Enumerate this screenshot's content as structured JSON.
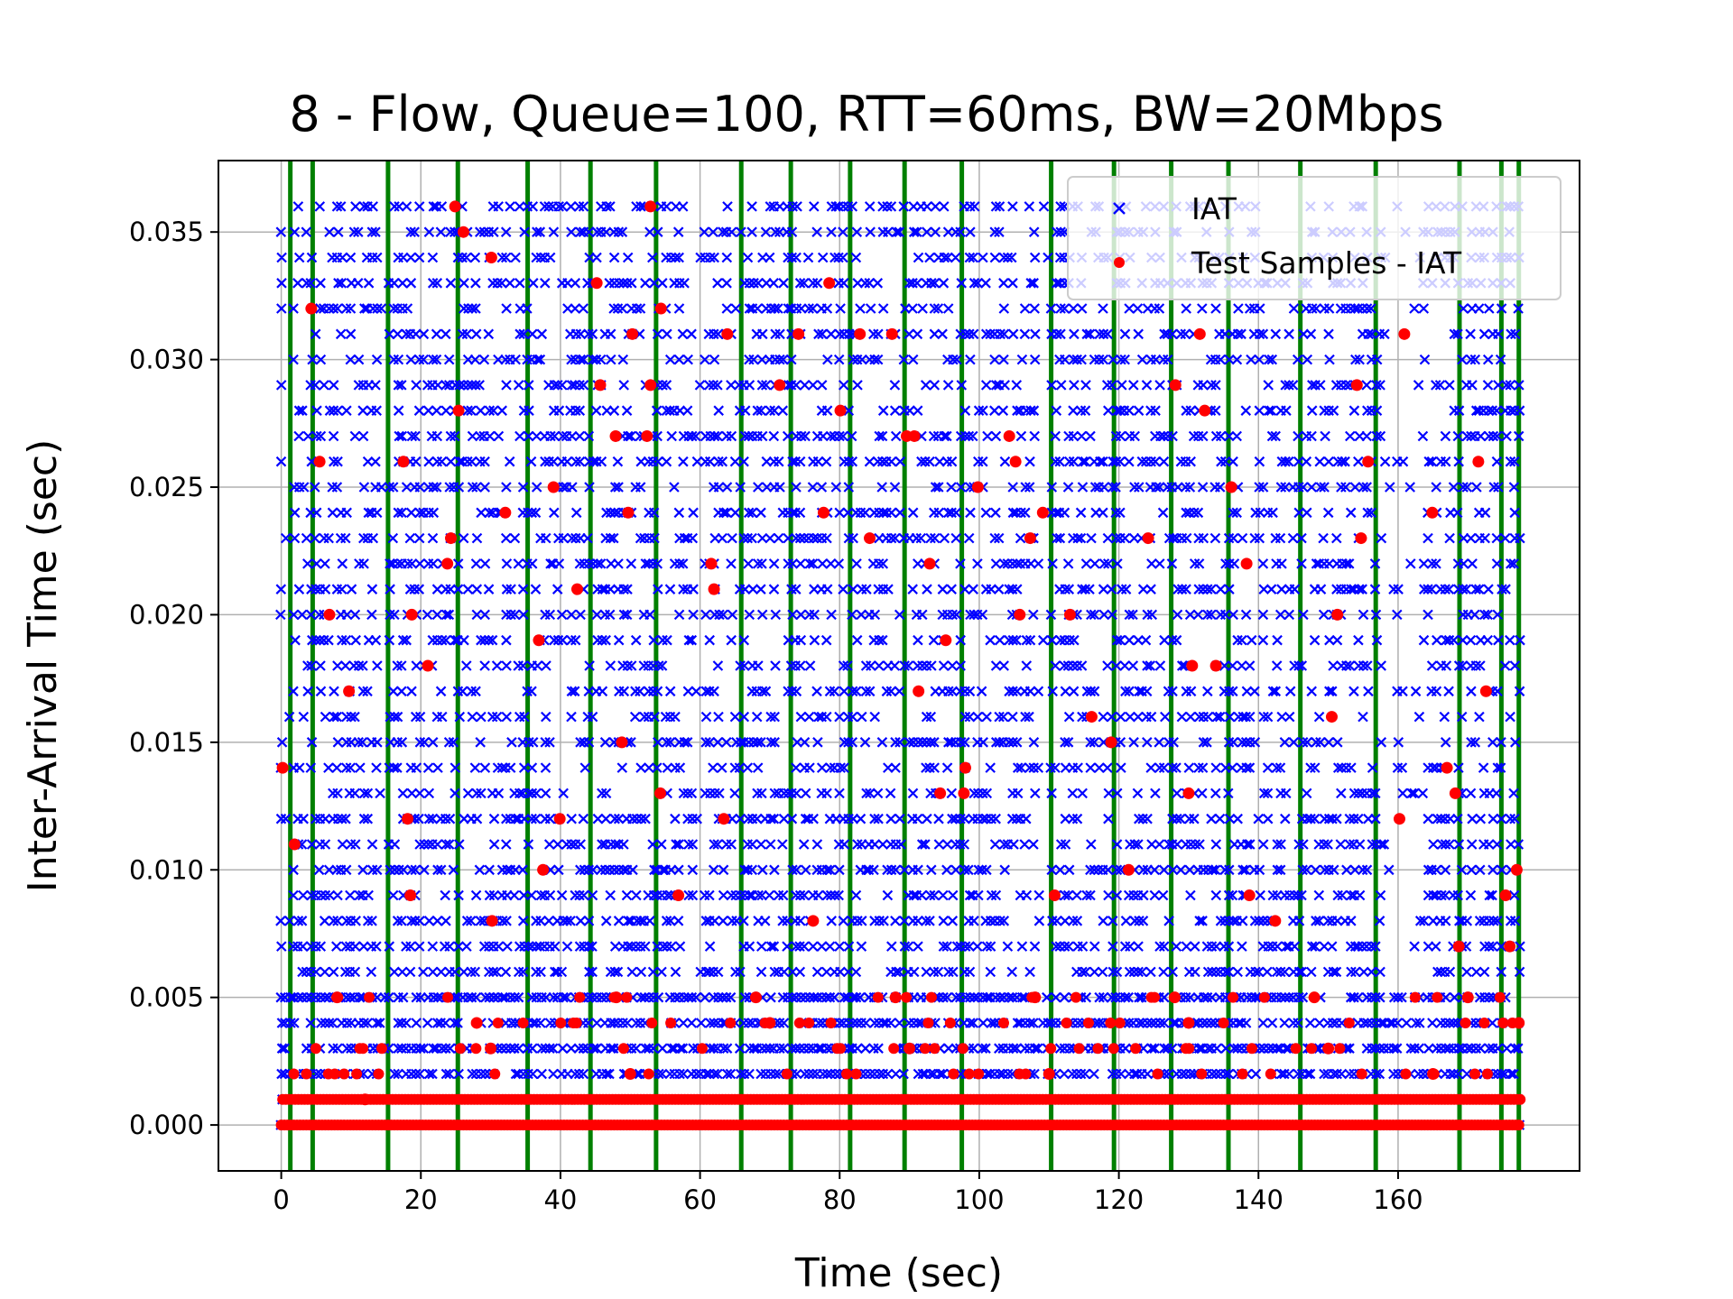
{
  "chart_data": {
    "type": "scatter",
    "title": "8 - Flow, Queue=100, RTT=60ms, BW=20Mbps",
    "xlabel": "Time (sec)",
    "ylabel": "Inter-Arrival Time (sec)",
    "xlim": [
      -9,
      186
    ],
    "ylim": [
      -0.0018,
      0.0378
    ],
    "xticks": [
      0,
      20,
      40,
      60,
      80,
      100,
      120,
      140,
      160
    ],
    "xtick_labels": [
      "0",
      "20",
      "40",
      "60",
      "80",
      "100",
      "120",
      "140",
      "160"
    ],
    "yticks": [
      0.0,
      0.005,
      0.01,
      0.015,
      0.02,
      0.025,
      0.03,
      0.035
    ],
    "ytick_labels": [
      "0.000",
      "0.005",
      "0.010",
      "0.015",
      "0.020",
      "0.025",
      "0.030",
      "0.035"
    ],
    "grid": true,
    "legend": {
      "position": "top-right",
      "entries": [
        "IAT",
        "Test Samples - IAT"
      ]
    },
    "colors": {
      "iat": "#0000ff",
      "test_samples": "#ff0000",
      "vertical_lines": "#008000",
      "grid": "#b0b0b0"
    },
    "x_range": [
      0,
      177.5
    ],
    "vertical_lines_x": [
      1.3,
      4.5,
      15.3,
      25.3,
      35.3,
      44.3,
      53.7,
      65.9,
      73.0,
      81.5,
      89.3,
      97.5,
      110.3,
      119.3,
      127.5,
      135.7,
      146.0,
      156.8,
      168.8,
      174.8,
      177.3
    ],
    "series": [
      {
        "name": "IAT",
        "marker": "x",
        "color": "#0000ff",
        "x_range": [
          0,
          177.5
        ],
        "y_levels": [
          0.0,
          0.001,
          0.002,
          0.003,
          0.004,
          0.005,
          0.006,
          0.007,
          0.008,
          0.009,
          0.01,
          0.011,
          0.012,
          0.013,
          0.014,
          0.015,
          0.016,
          0.017,
          0.018,
          0.019,
          0.02,
          0.021,
          0.022,
          0.023,
          0.024,
          0.025,
          0.026,
          0.027,
          0.028,
          0.029,
          0.03,
          0.031,
          0.032,
          0.033,
          0.034,
          0.035,
          0.036
        ]
      },
      {
        "name": "Test Samples - IAT",
        "marker": "o",
        "color": "#ff0000",
        "points": [
          [
            0.2,
            0.014
          ],
          [
            1.9,
            0.011
          ],
          [
            4.3,
            0.032
          ],
          [
            5.5,
            0.026
          ],
          [
            6.9,
            0.02
          ],
          [
            9.7,
            0.017
          ],
          [
            17.5,
            0.026
          ],
          [
            18.1,
            0.012
          ],
          [
            18.5,
            0.009
          ],
          [
            18.7,
            0.02
          ],
          [
            21.0,
            0.018
          ],
          [
            23.8,
            0.022
          ],
          [
            24.3,
            0.023
          ],
          [
            24.9,
            0.036
          ],
          [
            25.4,
            0.028
          ],
          [
            26.1,
            0.035
          ],
          [
            30.1,
            0.034
          ],
          [
            32.1,
            0.024
          ],
          [
            30.2,
            0.008
          ],
          [
            36.9,
            0.019
          ],
          [
            37.5,
            0.01
          ],
          [
            39.0,
            0.025
          ],
          [
            39.9,
            0.012
          ],
          [
            42.4,
            0.021
          ],
          [
            45.2,
            0.033
          ],
          [
            45.7,
            0.029
          ],
          [
            47.9,
            0.027
          ],
          [
            48.8,
            0.015
          ],
          [
            49.7,
            0.024
          ],
          [
            50.3,
            0.031
          ],
          [
            52.4,
            0.027
          ],
          [
            52.9,
            0.029
          ],
          [
            52.9,
            0.036
          ],
          [
            54.4,
            0.032
          ],
          [
            54.3,
            0.013
          ],
          [
            56.9,
            0.009
          ],
          [
            61.6,
            0.022
          ],
          [
            62.0,
            0.021
          ],
          [
            63.4,
            0.012
          ],
          [
            63.9,
            0.031
          ],
          [
            71.4,
            0.029
          ],
          [
            74.1,
            0.031
          ],
          [
            76.2,
            0.008
          ],
          [
            77.7,
            0.024
          ],
          [
            78.5,
            0.033
          ],
          [
            80.1,
            0.028
          ],
          [
            82.9,
            0.031
          ],
          [
            84.3,
            0.023
          ],
          [
            87.5,
            0.031
          ],
          [
            89.6,
            0.027
          ],
          [
            90.7,
            0.027
          ],
          [
            91.3,
            0.017
          ],
          [
            92.9,
            0.022
          ],
          [
            94.4,
            0.013
          ],
          [
            95.2,
            0.019
          ],
          [
            98.0,
            0.014
          ],
          [
            97.8,
            0.013
          ],
          [
            99.8,
            0.025
          ],
          [
            104.3,
            0.027
          ],
          [
            105.2,
            0.026
          ],
          [
            105.8,
            0.02
          ],
          [
            107.3,
            0.023
          ],
          [
            109.1,
            0.024
          ],
          [
            110.8,
            0.009
          ],
          [
            113.0,
            0.02
          ],
          [
            116.1,
            0.016
          ],
          [
            118.9,
            0.015
          ],
          [
            121.4,
            0.01
          ],
          [
            124.2,
            0.023
          ],
          [
            128.1,
            0.029
          ],
          [
            130.0,
            0.013
          ],
          [
            130.5,
            0.018
          ],
          [
            131.6,
            0.031
          ],
          [
            132.3,
            0.028
          ],
          [
            133.9,
            0.018
          ],
          [
            136.1,
            0.025
          ],
          [
            138.3,
            0.022
          ],
          [
            138.7,
            0.009
          ],
          [
            142.4,
            0.008
          ],
          [
            150.5,
            0.016
          ],
          [
            151.3,
            0.02
          ],
          [
            154.1,
            0.029
          ],
          [
            154.7,
            0.023
          ],
          [
            155.7,
            0.026
          ],
          [
            160.2,
            0.012
          ],
          [
            160.9,
            0.031
          ],
          [
            164.9,
            0.024
          ],
          [
            167.0,
            0.014
          ],
          [
            168.2,
            0.013
          ],
          [
            168.7,
            0.007
          ],
          [
            171.5,
            0.026
          ],
          [
            172.6,
            0.017
          ],
          [
            175.4,
            0.009
          ],
          [
            177.0,
            0.01
          ],
          [
            177.3,
            0.004
          ],
          [
            176.0,
            0.007
          ],
          [
            12.0,
            0.001
          ],
          [
            30.0,
            0.003
          ],
          [
            50.0,
            0.002
          ],
          [
            70.0,
            0.004
          ],
          [
            90.0,
            0.003
          ],
          [
            110.0,
            0.002
          ],
          [
            130.0,
            0.004
          ],
          [
            150.0,
            0.003
          ],
          [
            165.0,
            0.002
          ],
          [
            8.0,
            0.005
          ],
          [
            28.0,
            0.004
          ],
          [
            48.0,
            0.005
          ],
          [
            68.0,
            0.005
          ],
          [
            88.0,
            0.005
          ],
          [
            108.0,
            0.005
          ],
          [
            128.0,
            0.005
          ],
          [
            148.0,
            0.005
          ],
          [
            170.0,
            0.005
          ]
        ]
      }
    ]
  }
}
